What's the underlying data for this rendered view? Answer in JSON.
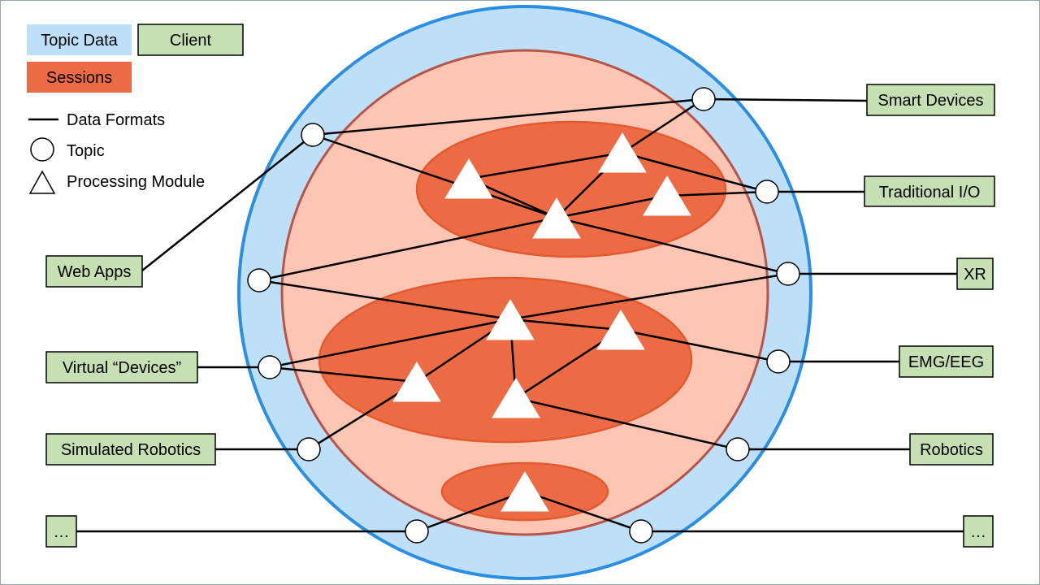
{
  "legend": {
    "topic_data": "Topic Data",
    "client": "Client",
    "sessions": "Sessions",
    "data_formats": "Data Formats",
    "topic": "Topic",
    "processing_module": "Processing Module"
  },
  "clients": {
    "smart_devices": "Smart Devices",
    "traditional_io": "Traditional I/O",
    "xr": "XR",
    "emg_eeg": "EMG/EEG",
    "robotics": "Robotics",
    "right_more": "…",
    "web_apps": "Web Apps",
    "virtual_devices": "Virtual “Devices”",
    "simulated_robotics": "Simulated Robotics",
    "left_more": "…"
  },
  "colors": {
    "topic_data": "#bde0f8",
    "topic_data_border": "#2b8ee2",
    "session_area": "#fdc6b4",
    "session": "#ec6a44",
    "client": "#c6e0b4",
    "line": "#000000"
  }
}
